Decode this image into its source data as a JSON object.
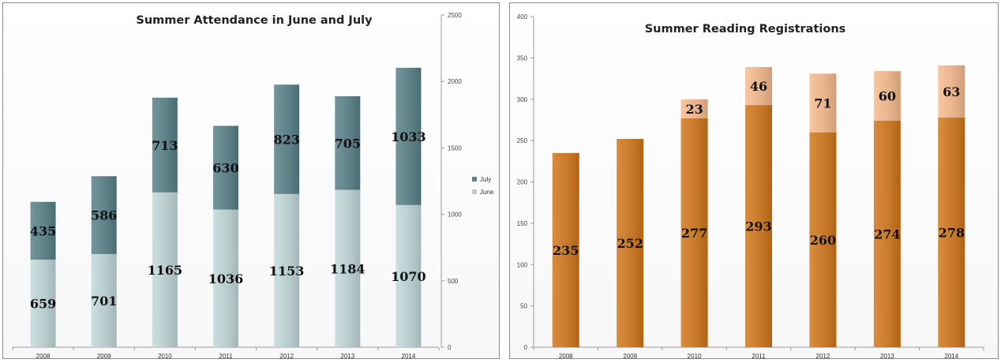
{
  "charts": {
    "left": {
      "chart_data": {
        "type": "bar",
        "stacked": true,
        "title": "Summer Attendance in June and July",
        "categories": [
          "2008",
          "2009",
          "2010",
          "2011",
          "2012",
          "2013",
          "2014"
        ],
        "series": [
          {
            "name": "June",
            "values": [
              659,
              701,
              1165,
              1036,
              1153,
              1184,
              1070
            ],
            "color": "#b9cdcf"
          },
          {
            "name": "July",
            "values": [
              435,
              586,
              713,
              630,
              823,
              705,
              1033
            ],
            "color": "#5f8389"
          }
        ],
        "ylim": [
          0,
          2500
        ],
        "yticks": [
          0,
          500,
          1000,
          1500,
          2000,
          2500
        ],
        "y_axis_side": "right",
        "legend_position": "right",
        "grid": false
      }
    },
    "right": {
      "chart_data": {
        "type": "bar",
        "stacked": true,
        "title": "Summer Reading Registrations",
        "categories": [
          "2008",
          "2009",
          "2010",
          "2011",
          "2012",
          "2013",
          "2014"
        ],
        "series": [
          {
            "name": "",
            "values": [
              235,
              252,
              277,
              293,
              260,
              274,
              278
            ],
            "color": "#c77a2a"
          },
          {
            "name": "",
            "values": [
              null,
              null,
              23,
              46,
              71,
              60,
              63
            ],
            "color": "#e8b48e"
          }
        ],
        "ylim": [
          0,
          400
        ],
        "yticks": [
          0,
          50,
          100,
          150,
          200,
          250,
          300,
          350,
          400
        ],
        "y_axis_side": "left",
        "legend_position": "none",
        "grid": false
      }
    }
  }
}
